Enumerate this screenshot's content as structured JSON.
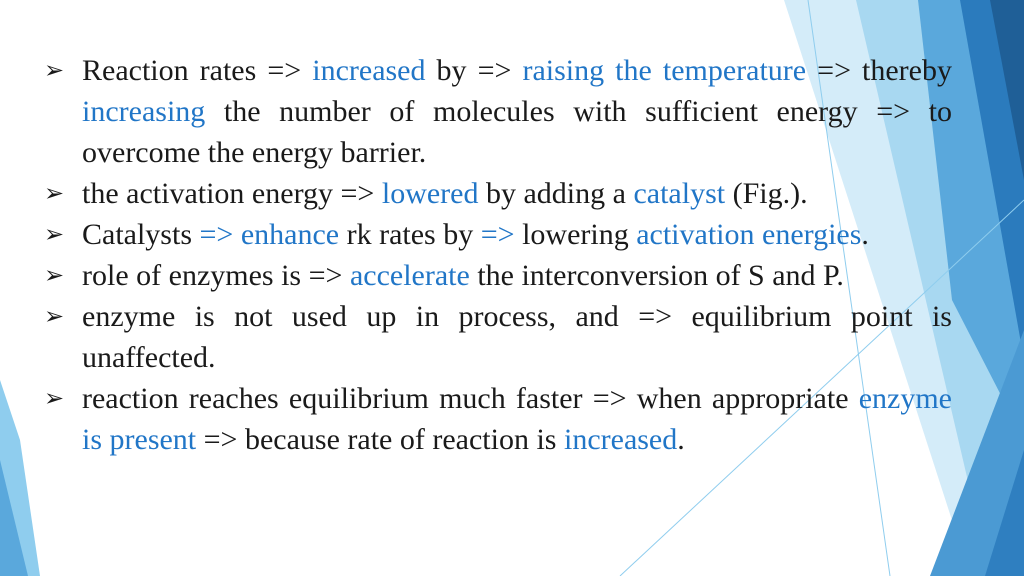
{
  "colors": {
    "accent": "#2176c7",
    "decor_light": "#cfeaf8",
    "decor_mid": "#8fcdee",
    "decor_dark": "#2b7bbd",
    "decor_darkest": "#1f5f97"
  },
  "bullet_icon": "arrowhead-bullet-icon",
  "bullets": [
    {
      "t0": "Reaction rates => ",
      "h1": "increased",
      "t1": " by => ",
      "h2": "raising the temperature",
      "t2": " => thereby ",
      "h3": "increasing",
      "t3": " the number of molecules with sufficient energy => to overcome the energy barrier."
    },
    {
      "t0": "the activation energy => ",
      "h1": "lowered",
      "t1": " by adding a ",
      "h2": "catalyst",
      "t2": " (Fig.)."
    },
    {
      "t0": "Catalysts ",
      "h1": "=> enhance",
      "t1": " rk rates by ",
      "h2": "=>",
      "t2": " lowering ",
      "h3": "activation energies",
      "t3": "."
    },
    {
      "t0": "role of enzymes is => ",
      "h1": "accelerate",
      "t1": " the interconversion of S and P."
    },
    {
      "t0": "enzyme is not used up in process, and => equilibrium point is unaffected."
    },
    {
      "t0": "reaction reaches equilibrium much faster => when appropriate ",
      "h1": "enzyme is present",
      "t1": " => because rate of reaction is ",
      "h2": "increased",
      "t2": "."
    }
  ]
}
